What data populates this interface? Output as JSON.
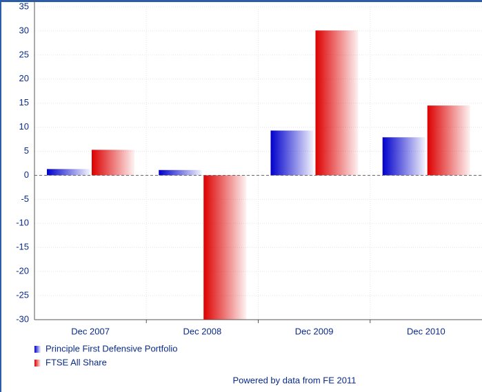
{
  "chart_data": {
    "type": "bar",
    "categories": [
      "Dec 2007",
      "Dec 2008",
      "Dec 2009",
      "Dec 2010"
    ],
    "series": [
      {
        "name": "Principle First Defensive Portfolio",
        "color": "#0000cc",
        "values": [
          1.3,
          1.1,
          9.3,
          7.9
        ]
      },
      {
        "name": "FTSE All Share",
        "color": "#dd0000",
        "values": [
          5.3,
          -30,
          30.1,
          14.5
        ]
      }
    ],
    "ylim": [
      -30,
      35
    ],
    "yticks": [
      35,
      30,
      25,
      20,
      15,
      10,
      5,
      0,
      -5,
      -10,
      -15,
      -20,
      -25,
      -30
    ],
    "grid": true,
    "source": "Powered by data from FE 2011"
  }
}
